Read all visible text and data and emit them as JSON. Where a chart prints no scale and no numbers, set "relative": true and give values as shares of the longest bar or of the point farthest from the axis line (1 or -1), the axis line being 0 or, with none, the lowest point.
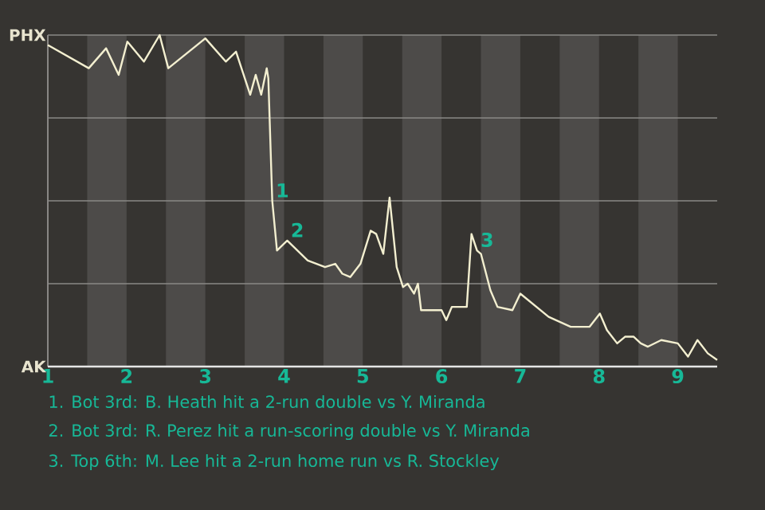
{
  "chart_data": {
    "type": "line",
    "relative": true,
    "x": [
      1.0,
      1.52,
      1.74,
      1.9,
      2.01,
      2.22,
      2.42,
      2.53,
      3.0,
      3.26,
      3.39,
      3.57,
      3.64,
      3.71,
      3.78,
      3.8,
      3.85,
      3.91,
      4.04,
      4.3,
      4.52,
      4.65,
      4.74,
      4.84,
      4.97,
      5.1,
      5.17,
      5.26,
      5.34,
      5.43,
      5.51,
      5.57,
      5.65,
      5.7,
      5.74,
      6.0,
      6.06,
      6.13,
      6.32,
      6.38,
      6.45,
      6.5,
      6.62,
      6.71,
      6.9,
      7.0,
      7.36,
      7.64,
      7.88,
      8.01,
      8.1,
      8.23,
      8.33,
      8.44,
      8.53,
      8.62,
      8.79,
      9.0,
      9.13,
      9.25,
      9.38,
      9.5
    ],
    "series": [
      {
        "color": "#f3efd0",
        "values": [
          0.97,
          0.9,
          0.96,
          0.88,
          0.98,
          0.92,
          1.0,
          0.9,
          0.99,
          0.92,
          0.95,
          0.82,
          0.88,
          0.82,
          0.9,
          0.87,
          0.5,
          0.35,
          0.38,
          0.32,
          0.3,
          0.31,
          0.28,
          0.27,
          0.31,
          0.41,
          0.4,
          0.34,
          0.51,
          0.3,
          0.24,
          0.25,
          0.22,
          0.25,
          0.17,
          0.17,
          0.14,
          0.18,
          0.18,
          0.4,
          0.35,
          0.34,
          0.23,
          0.18,
          0.17,
          0.22,
          0.15,
          0.12,
          0.12,
          0.16,
          0.11,
          0.07,
          0.09,
          0.09,
          0.07,
          0.06,
          0.08,
          0.07,
          0.03,
          0.08,
          0.04,
          0.02
        ]
      }
    ],
    "xlim": [
      1,
      9.5
    ],
    "xticks": [
      1,
      2,
      3,
      4,
      5,
      6,
      7,
      8,
      9
    ],
    "tick_labels": "x",
    "grid": "y",
    "marker": "none",
    "line_style": "solid",
    "bands": [
      {
        "axis": "x",
        "from": 1.5,
        "to": 2,
        "color": "#4d4b49"
      },
      {
        "axis": "x",
        "from": 2.5,
        "to": 3,
        "color": "#4d4b49"
      },
      {
        "axis": "x",
        "from": 3.5,
        "to": 4,
        "color": "#4d4b49"
      },
      {
        "axis": "x",
        "from": 4.5,
        "to": 5,
        "color": "#4d4b49"
      },
      {
        "axis": "x",
        "from": 5.5,
        "to": 6,
        "color": "#4d4b49"
      },
      {
        "axis": "x",
        "from": 6.5,
        "to": 7,
        "color": "#4d4b49"
      },
      {
        "axis": "x",
        "from": 7.5,
        "to": 8,
        "color": "#4d4b49"
      },
      {
        "axis": "x",
        "from": 8.5,
        "to": 9,
        "color": "#4d4b49"
      }
    ],
    "annotations": [
      "PHX",
      "AK",
      {
        "text": "1",
        "x": 3.85,
        "y": 0.5
      },
      {
        "text": "2",
        "x": 4.04,
        "y": 0.38
      },
      {
        "text": "3",
        "x": 6.45,
        "y": 0.35
      },
      "1. Bot 3rd: B. Heath hit a 2-run double vs Y. Miranda",
      "2. Bot 3rd: R. Perez hit a run-scoring double vs Y. Miranda",
      "3. Top 6th: M. Lee hit a 2-run home run vs R. Stockley"
    ]
  }
}
